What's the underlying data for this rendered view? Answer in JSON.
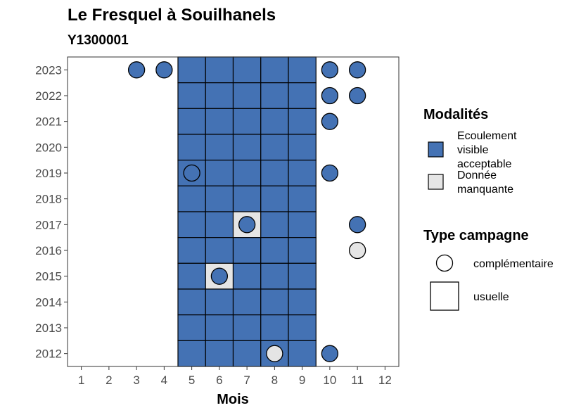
{
  "chart_data": {
    "type": "heatmap",
    "title": "Le Fresquel à Souilhanels",
    "subtitle": "Y1300001",
    "xlabel": "Mois",
    "ylabel": "",
    "x_ticks": [
      1,
      2,
      3,
      4,
      5,
      6,
      7,
      8,
      9,
      10,
      11,
      12
    ],
    "y_ticks": [
      2012,
      2013,
      2014,
      2015,
      2016,
      2017,
      2018,
      2019,
      2020,
      2021,
      2022,
      2023
    ],
    "xlim": [
      0.5,
      12.5
    ],
    "ylim": [
      2011.5,
      2023.5
    ],
    "grid": false,
    "legend_placement": "right",
    "colors": {
      "ecoulement_visible_acceptable": "#4472b4",
      "donnee_manquante": "#e5e5e5"
    },
    "legend_modalites": {
      "title": "Modalités",
      "entries": [
        {
          "key": "ecoulement_visible_acceptable",
          "label_lines": [
            "Ecoulement",
            "visible",
            "acceptable"
          ]
        },
        {
          "key": "donnee_manquante",
          "label_lines": [
            "Donnée",
            "manquante"
          ]
        }
      ]
    },
    "legend_type": {
      "title": "Type campagne",
      "entries": [
        {
          "shape": "circle",
          "label": "complémentaire"
        },
        {
          "shape": "square",
          "label": "usuelle"
        }
      ]
    },
    "points": [
      {
        "x": 5,
        "y": 2023,
        "modalite": "ecoulement_visible_acceptable",
        "campagne": "usuelle"
      },
      {
        "x": 6,
        "y": 2023,
        "modalite": "ecoulement_visible_acceptable",
        "campagne": "usuelle"
      },
      {
        "x": 7,
        "y": 2023,
        "modalite": "ecoulement_visible_acceptable",
        "campagne": "usuelle"
      },
      {
        "x": 8,
        "y": 2023,
        "modalite": "ecoulement_visible_acceptable",
        "campagne": "usuelle"
      },
      {
        "x": 9,
        "y": 2023,
        "modalite": "ecoulement_visible_acceptable",
        "campagne": "usuelle"
      },
      {
        "x": 5,
        "y": 2022,
        "modalite": "ecoulement_visible_acceptable",
        "campagne": "usuelle"
      },
      {
        "x": 6,
        "y": 2022,
        "modalite": "ecoulement_visible_acceptable",
        "campagne": "usuelle"
      },
      {
        "x": 7,
        "y": 2022,
        "modalite": "ecoulement_visible_acceptable",
        "campagne": "usuelle"
      },
      {
        "x": 8,
        "y": 2022,
        "modalite": "ecoulement_visible_acceptable",
        "campagne": "usuelle"
      },
      {
        "x": 9,
        "y": 2022,
        "modalite": "ecoulement_visible_acceptable",
        "campagne": "usuelle"
      },
      {
        "x": 5,
        "y": 2021,
        "modalite": "ecoulement_visible_acceptable",
        "campagne": "usuelle"
      },
      {
        "x": 6,
        "y": 2021,
        "modalite": "ecoulement_visible_acceptable",
        "campagne": "usuelle"
      },
      {
        "x": 7,
        "y": 2021,
        "modalite": "ecoulement_visible_acceptable",
        "campagne": "usuelle"
      },
      {
        "x": 8,
        "y": 2021,
        "modalite": "ecoulement_visible_acceptable",
        "campagne": "usuelle"
      },
      {
        "x": 9,
        "y": 2021,
        "modalite": "ecoulement_visible_acceptable",
        "campagne": "usuelle"
      },
      {
        "x": 5,
        "y": 2020,
        "modalite": "ecoulement_visible_acceptable",
        "campagne": "usuelle"
      },
      {
        "x": 6,
        "y": 2020,
        "modalite": "ecoulement_visible_acceptable",
        "campagne": "usuelle"
      },
      {
        "x": 7,
        "y": 2020,
        "modalite": "ecoulement_visible_acceptable",
        "campagne": "usuelle"
      },
      {
        "x": 8,
        "y": 2020,
        "modalite": "ecoulement_visible_acceptable",
        "campagne": "usuelle"
      },
      {
        "x": 9,
        "y": 2020,
        "modalite": "ecoulement_visible_acceptable",
        "campagne": "usuelle"
      },
      {
        "x": 5,
        "y": 2019,
        "modalite": "ecoulement_visible_acceptable",
        "campagne": "usuelle"
      },
      {
        "x": 6,
        "y": 2019,
        "modalite": "ecoulement_visible_acceptable",
        "campagne": "usuelle"
      },
      {
        "x": 7,
        "y": 2019,
        "modalite": "ecoulement_visible_acceptable",
        "campagne": "usuelle"
      },
      {
        "x": 8,
        "y": 2019,
        "modalite": "ecoulement_visible_acceptable",
        "campagne": "usuelle"
      },
      {
        "x": 9,
        "y": 2019,
        "modalite": "ecoulement_visible_acceptable",
        "campagne": "usuelle"
      },
      {
        "x": 5,
        "y": 2018,
        "modalite": "ecoulement_visible_acceptable",
        "campagne": "usuelle"
      },
      {
        "x": 6,
        "y": 2018,
        "modalite": "ecoulement_visible_acceptable",
        "campagne": "usuelle"
      },
      {
        "x": 7,
        "y": 2018,
        "modalite": "ecoulement_visible_acceptable",
        "campagne": "usuelle"
      },
      {
        "x": 8,
        "y": 2018,
        "modalite": "ecoulement_visible_acceptable",
        "campagne": "usuelle"
      },
      {
        "x": 9,
        "y": 2018,
        "modalite": "ecoulement_visible_acceptable",
        "campagne": "usuelle"
      },
      {
        "x": 5,
        "y": 2017,
        "modalite": "ecoulement_visible_acceptable",
        "campagne": "usuelle"
      },
      {
        "x": 6,
        "y": 2017,
        "modalite": "ecoulement_visible_acceptable",
        "campagne": "usuelle"
      },
      {
        "x": 7,
        "y": 2017,
        "modalite": "donnee_manquante",
        "campagne": "usuelle"
      },
      {
        "x": 8,
        "y": 2017,
        "modalite": "ecoulement_visible_acceptable",
        "campagne": "usuelle"
      },
      {
        "x": 9,
        "y": 2017,
        "modalite": "ecoulement_visible_acceptable",
        "campagne": "usuelle"
      },
      {
        "x": 5,
        "y": 2016,
        "modalite": "ecoulement_visible_acceptable",
        "campagne": "usuelle"
      },
      {
        "x": 6,
        "y": 2016,
        "modalite": "ecoulement_visible_acceptable",
        "campagne": "usuelle"
      },
      {
        "x": 7,
        "y": 2016,
        "modalite": "ecoulement_visible_acceptable",
        "campagne": "usuelle"
      },
      {
        "x": 8,
        "y": 2016,
        "modalite": "ecoulement_visible_acceptable",
        "campagne": "usuelle"
      },
      {
        "x": 9,
        "y": 2016,
        "modalite": "ecoulement_visible_acceptable",
        "campagne": "usuelle"
      },
      {
        "x": 5,
        "y": 2015,
        "modalite": "ecoulement_visible_acceptable",
        "campagne": "usuelle"
      },
      {
        "x": 6,
        "y": 2015,
        "modalite": "donnee_manquante",
        "campagne": "usuelle"
      },
      {
        "x": 7,
        "y": 2015,
        "modalite": "ecoulement_visible_acceptable",
        "campagne": "usuelle"
      },
      {
        "x": 8,
        "y": 2015,
        "modalite": "ecoulement_visible_acceptable",
        "campagne": "usuelle"
      },
      {
        "x": 9,
        "y": 2015,
        "modalite": "ecoulement_visible_acceptable",
        "campagne": "usuelle"
      },
      {
        "x": 5,
        "y": 2014,
        "modalite": "ecoulement_visible_acceptable",
        "campagne": "usuelle"
      },
      {
        "x": 6,
        "y": 2014,
        "modalite": "ecoulement_visible_acceptable",
        "campagne": "usuelle"
      },
      {
        "x": 7,
        "y": 2014,
        "modalite": "ecoulement_visible_acceptable",
        "campagne": "usuelle"
      },
      {
        "x": 8,
        "y": 2014,
        "modalite": "ecoulement_visible_acceptable",
        "campagne": "usuelle"
      },
      {
        "x": 9,
        "y": 2014,
        "modalite": "ecoulement_visible_acceptable",
        "campagne": "usuelle"
      },
      {
        "x": 5,
        "y": 2013,
        "modalite": "ecoulement_visible_acceptable",
        "campagne": "usuelle"
      },
      {
        "x": 6,
        "y": 2013,
        "modalite": "ecoulement_visible_acceptable",
        "campagne": "usuelle"
      },
      {
        "x": 7,
        "y": 2013,
        "modalite": "ecoulement_visible_acceptable",
        "campagne": "usuelle"
      },
      {
        "x": 8,
        "y": 2013,
        "modalite": "ecoulement_visible_acceptable",
        "campagne": "usuelle"
      },
      {
        "x": 9,
        "y": 2013,
        "modalite": "ecoulement_visible_acceptable",
        "campagne": "usuelle"
      },
      {
        "x": 5,
        "y": 2012,
        "modalite": "ecoulement_visible_acceptable",
        "campagne": "usuelle"
      },
      {
        "x": 6,
        "y": 2012,
        "modalite": "ecoulement_visible_acceptable",
        "campagne": "usuelle"
      },
      {
        "x": 7,
        "y": 2012,
        "modalite": "ecoulement_visible_acceptable",
        "campagne": "usuelle"
      },
      {
        "x": 8,
        "y": 2012,
        "modalite": "ecoulement_visible_acceptable",
        "campagne": "usuelle"
      },
      {
        "x": 9,
        "y": 2012,
        "modalite": "ecoulement_visible_acceptable",
        "campagne": "usuelle"
      },
      {
        "x": 3,
        "y": 2023,
        "modalite": "ecoulement_visible_acceptable",
        "campagne": "complementaire"
      },
      {
        "x": 4,
        "y": 2023,
        "modalite": "ecoulement_visible_acceptable",
        "campagne": "complementaire"
      },
      {
        "x": 10,
        "y": 2023,
        "modalite": "ecoulement_visible_acceptable",
        "campagne": "complementaire"
      },
      {
        "x": 11,
        "y": 2023,
        "modalite": "ecoulement_visible_acceptable",
        "campagne": "complementaire"
      },
      {
        "x": 10,
        "y": 2022,
        "modalite": "ecoulement_visible_acceptable",
        "campagne": "complementaire"
      },
      {
        "x": 11,
        "y": 2022,
        "modalite": "ecoulement_visible_acceptable",
        "campagne": "complementaire"
      },
      {
        "x": 10,
        "y": 2021,
        "modalite": "ecoulement_visible_acceptable",
        "campagne": "complementaire"
      },
      {
        "x": 5,
        "y": 2019,
        "modalite": "ecoulement_visible_acceptable",
        "campagne": "complementaire"
      },
      {
        "x": 10,
        "y": 2019,
        "modalite": "ecoulement_visible_acceptable",
        "campagne": "complementaire"
      },
      {
        "x": 7,
        "y": 2017,
        "modalite": "ecoulement_visible_acceptable",
        "campagne": "complementaire"
      },
      {
        "x": 11,
        "y": 2017,
        "modalite": "ecoulement_visible_acceptable",
        "campagne": "complementaire"
      },
      {
        "x": 11,
        "y": 2016,
        "modalite": "donnee_manquante",
        "campagne": "complementaire"
      },
      {
        "x": 6,
        "y": 2015,
        "modalite": "ecoulement_visible_acceptable",
        "campagne": "complementaire"
      },
      {
        "x": 8,
        "y": 2012,
        "modalite": "donnee_manquante",
        "campagne": "complementaire"
      },
      {
        "x": 10,
        "y": 2012,
        "modalite": "ecoulement_visible_acceptable",
        "campagne": "complementaire"
      }
    ]
  }
}
